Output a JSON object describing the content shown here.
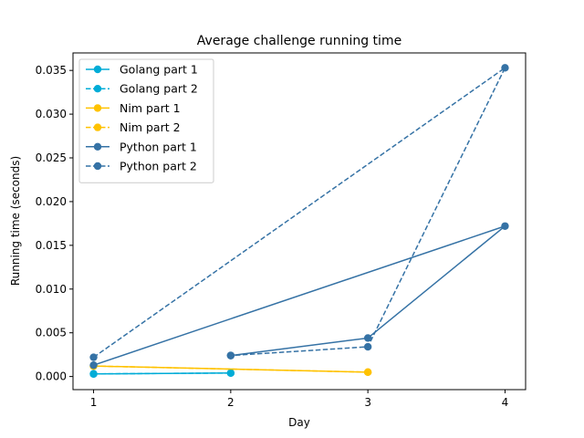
{
  "chart_data": {
    "type": "line",
    "title": "Average challenge running time",
    "xlabel": "Day",
    "ylabel": "Running time (seconds)",
    "xlim": [
      0.85,
      4.15
    ],
    "ylim": [
      -0.0015,
      0.037
    ],
    "x_ticks": [
      1,
      2,
      3,
      4
    ],
    "x_tick_labels": [
      "1",
      "2",
      "3",
      "4"
    ],
    "y_ticks": [
      0,
      0.005,
      0.01,
      0.015,
      0.02,
      0.025,
      0.03,
      0.035
    ],
    "y_tick_labels": [
      "0.000",
      "0.005",
      "0.010",
      "0.015",
      "0.020",
      "0.025",
      "0.030",
      "0.035"
    ],
    "grid": false,
    "legend_position": "upper-left",
    "series": [
      {
        "name": "Golang part 1",
        "color": "#00acd7",
        "linestyle": "solid",
        "marker": "circle",
        "x": [
          1,
          2
        ],
        "y": [
          0.0003,
          0.0004
        ]
      },
      {
        "name": "Golang part 2",
        "color": "#00acd7",
        "linestyle": "dashed",
        "marker": "circle",
        "x": [
          1,
          2
        ],
        "y": [
          0.0003,
          0.0004
        ]
      },
      {
        "name": "Nim part 1",
        "color": "#ffc200",
        "linestyle": "solid",
        "marker": "circle",
        "x": [
          1,
          3
        ],
        "y": [
          0.0012,
          0.0005
        ]
      },
      {
        "name": "Nim part 2",
        "color": "#ffc200",
        "linestyle": "dashed",
        "marker": "circle",
        "x": [
          1,
          3
        ],
        "y": [
          0.0012,
          0.0005
        ]
      },
      {
        "name": "Python part 1",
        "color": "#3572a5",
        "linestyle": "solid",
        "marker": "circle",
        "x": [
          1,
          4,
          3,
          2
        ],
        "y": [
          0.0013,
          0.0172,
          0.0044,
          0.0024
        ]
      },
      {
        "name": "Python part 2",
        "color": "#3572a5",
        "linestyle": "dashed",
        "marker": "circle",
        "x": [
          1,
          4,
          3,
          2
        ],
        "y": [
          0.0022,
          0.0353,
          0.0034,
          0.0024
        ]
      }
    ]
  }
}
